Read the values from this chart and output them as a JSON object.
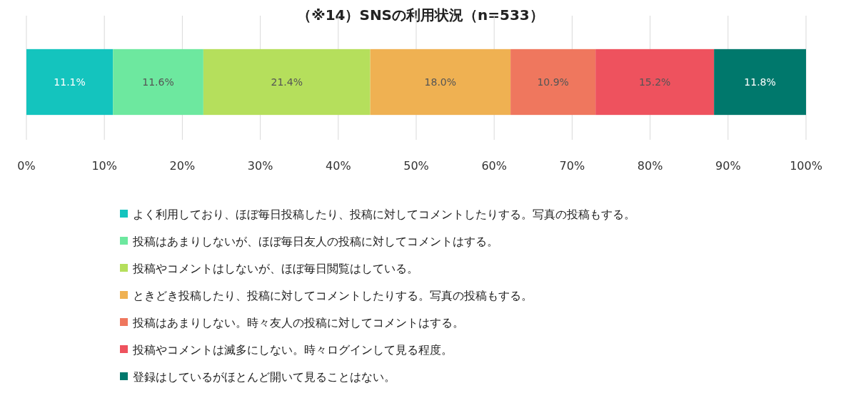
{
  "chart_data": {
    "type": "bar",
    "orientation": "horizontal",
    "stacked": true,
    "title": "（※14）SNSの利用状況（n=533）",
    "categories": [
      null
    ],
    "series": [
      {
        "name": "よく利用しており、ほぼ毎日投稿したり、投稿に対してコメントしたりする。写真の投稿もする。",
        "color": "#14c4be",
        "values": [
          11.1
        ],
        "value_labels": [
          "11.1%"
        ]
      },
      {
        "name": "投稿はあまりしないが、ほぼ毎日友人の投稿に対してコメントはする。",
        "color": "#6de89f",
        "values": [
          11.6
        ],
        "value_labels": [
          "11.6%"
        ]
      },
      {
        "name": "投稿やコメントはしないが、ほぼ毎日閲覧はしている。",
        "color": "#b5df5c",
        "values": [
          21.4
        ],
        "value_labels": [
          "21.4%"
        ]
      },
      {
        "name": "ときどき投稿したり、投稿に対してコメントしたりする。写真の投稿もする。",
        "color": "#efb152",
        "values": [
          18.0
        ],
        "value_labels": [
          "18.0%"
        ]
      },
      {
        "name": "投稿はあまりしない。時々友人の投稿に対してコメントはする。",
        "color": "#ef775e",
        "values": [
          10.9
        ],
        "value_labels": [
          "10.9%"
        ]
      },
      {
        "name": "投稿やコメントは滅多にしない。時々ログインして見る程度。",
        "color": "#ee525e",
        "values": [
          15.2
        ],
        "value_labels": [
          "15.2%"
        ]
      },
      {
        "name": "登録はしているがほとんど開いて見ることはない。",
        "color": "#00786c",
        "values": [
          11.8
        ],
        "value_labels": [
          "11.8%"
        ]
      }
    ],
    "xlim": [
      0,
      100
    ],
    "xticks": [
      {
        "value": 0,
        "label": "0%"
      },
      {
        "value": 10,
        "label": "10%"
      },
      {
        "value": 20,
        "label": "20%"
      },
      {
        "value": 30,
        "label": "30%"
      },
      {
        "value": 40,
        "label": "40%"
      },
      {
        "value": 50,
        "label": "50%"
      },
      {
        "value": 60,
        "label": "60%"
      },
      {
        "value": 70,
        "label": "70%"
      },
      {
        "value": 80,
        "label": "80%"
      },
      {
        "value": 90,
        "label": "90%"
      },
      {
        "value": 100,
        "label": "100%"
      }
    ],
    "grid": "x",
    "legend": "bottom"
  }
}
